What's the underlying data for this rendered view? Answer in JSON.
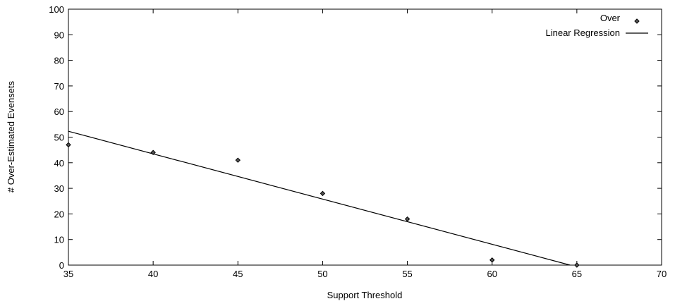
{
  "chart_data": {
    "type": "scatter",
    "xlabel": "Support Threshold",
    "ylabel": "# Over-Estimated Evensets",
    "xlim": [
      35,
      70
    ],
    "ylim": [
      0,
      100
    ],
    "xticks": [
      35,
      40,
      45,
      50,
      55,
      60,
      65,
      70
    ],
    "yticks": [
      0,
      10,
      20,
      30,
      40,
      50,
      60,
      70,
      80,
      90,
      100
    ],
    "grid": false,
    "legend_position": "top-right",
    "series": [
      {
        "name": "Over",
        "kind": "points",
        "marker": "diamond",
        "x": [
          35,
          40,
          45,
          50,
          55,
          60,
          65
        ],
        "y": [
          47,
          44,
          41,
          28,
          18,
          2,
          0
        ]
      },
      {
        "name": "Linear Regression",
        "kind": "line",
        "x": [
          35,
          64.6
        ],
        "y": [
          52.3,
          0
        ]
      }
    ]
  }
}
